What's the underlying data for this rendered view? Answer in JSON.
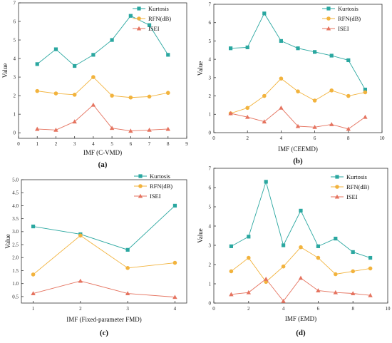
{
  "figure": {
    "colors": {
      "Kurtosis": "#2aa7a0",
      "RFN(dB)": "#f2b33d",
      "ISEI": "#e5735f"
    }
  },
  "chart_data": [
    {
      "type": "line",
      "panel_label": "(a)",
      "xlabel": "IMF (C-VMD)",
      "ylabel": "Value",
      "xlim": [
        0,
        9
      ],
      "ylim": [
        -0.3,
        7
      ],
      "xticks": [
        0,
        1,
        2,
        3,
        4,
        5,
        6,
        7,
        8,
        9
      ],
      "yticks": [
        0,
        1,
        2,
        3,
        4,
        5,
        6,
        7
      ],
      "ytick_labels": [
        "0",
        "1",
        "2",
        "3",
        "4",
        "5",
        "6",
        "7"
      ],
      "legend_position": "top-right",
      "x": [
        1,
        2,
        3,
        4,
        5,
        6,
        7,
        8
      ],
      "series": [
        {
          "name": "Kurtosis",
          "marker": "square",
          "values": [
            3.7,
            4.5,
            3.6,
            4.2,
            5.0,
            6.3,
            5.8,
            4.2
          ]
        },
        {
          "name": "RFN(dB)",
          "marker": "circle",
          "values": [
            2.25,
            2.12,
            2.05,
            3.0,
            2.0,
            1.9,
            1.95,
            2.15
          ]
        },
        {
          "name": "ISEI",
          "marker": "triangle",
          "values": [
            0.2,
            0.15,
            0.6,
            1.5,
            0.25,
            0.1,
            0.15,
            0.2
          ]
        }
      ]
    },
    {
      "type": "line",
      "panel_label": "(b)",
      "xlabel": "IMF (CEEMD)",
      "ylabel": "Value",
      "xlim": [
        0,
        10
      ],
      "ylim": [
        0,
        7
      ],
      "xticks": [
        0,
        2,
        4,
        6,
        8,
        10
      ],
      "yticks": [
        0,
        1,
        2,
        3,
        4,
        5,
        6,
        7
      ],
      "ytick_labels": [
        "0",
        "1",
        "2",
        "3",
        "4",
        "5",
        "6",
        "7"
      ],
      "legend_position": "top-right",
      "x": [
        1,
        2,
        3,
        4,
        5,
        6,
        7,
        8,
        9
      ],
      "series": [
        {
          "name": "Kurtosis",
          "marker": "square",
          "values": [
            4.6,
            4.65,
            6.5,
            5.0,
            4.6,
            4.4,
            4.2,
            3.95,
            2.35
          ]
        },
        {
          "name": "RFN(dB)",
          "marker": "circle",
          "values": [
            1.05,
            1.35,
            2.0,
            2.95,
            2.25,
            1.75,
            2.3,
            2.0,
            2.2
          ]
        },
        {
          "name": "ISEI",
          "marker": "triangle",
          "values": [
            1.05,
            0.85,
            0.6,
            1.35,
            0.35,
            0.3,
            0.45,
            0.2,
            0.85
          ]
        }
      ]
    },
    {
      "type": "line",
      "panel_label": "(c)",
      "xlabel": "IMF (Fixed-parameter FMD)",
      "ylabel": "Value",
      "xlim": [
        0.75,
        4.25
      ],
      "ylim": [
        0.25,
        5.0
      ],
      "xticks": [
        1,
        2,
        3,
        4
      ],
      "yticks": [
        0.5,
        1.0,
        1.5,
        2.0,
        2.5,
        3.0,
        3.5,
        4.0,
        4.5,
        5.0
      ],
      "ytick_labels": [
        "0.5",
        "1.0",
        "1.5",
        "2.0",
        "2.5",
        "3.0",
        "3.5",
        "4.0",
        "4.5",
        "5.0"
      ],
      "legend_position": "top-right",
      "x": [
        1,
        2,
        3,
        4
      ],
      "series": [
        {
          "name": "Kurtosis",
          "marker": "square",
          "values": [
            3.2,
            2.9,
            2.3,
            4.0
          ]
        },
        {
          "name": "RFN(dB)",
          "marker": "circle",
          "values": [
            1.35,
            2.85,
            1.6,
            1.8
          ]
        },
        {
          "name": "ISEI",
          "marker": "triangle",
          "values": [
            0.62,
            1.1,
            0.62,
            0.48
          ]
        }
      ]
    },
    {
      "type": "line",
      "panel_label": "(d)",
      "xlabel": "IMF (EMD)",
      "ylabel": "Value",
      "xlim": [
        0,
        10
      ],
      "ylim": [
        0,
        7
      ],
      "xticks": [
        0,
        2,
        4,
        6,
        8,
        10
      ],
      "yticks": [
        0,
        1,
        2,
        3,
        4,
        5,
        6,
        7
      ],
      "ytick_labels": [
        "0",
        "1",
        "2",
        "3",
        "4",
        "5",
        "6",
        "7"
      ],
      "legend_position": "top-right",
      "x": [
        1,
        2,
        3,
        4,
        5,
        6,
        7,
        8,
        9
      ],
      "series": [
        {
          "name": "Kurtosis",
          "marker": "square",
          "values": [
            2.95,
            3.45,
            6.3,
            3.0,
            4.8,
            2.95,
            3.35,
            2.65,
            2.35
          ]
        },
        {
          "name": "RFN(dB)",
          "marker": "circle",
          "values": [
            1.65,
            2.35,
            1.1,
            1.9,
            2.9,
            2.35,
            1.5,
            1.65,
            1.8
          ]
        },
        {
          "name": "ISEI",
          "marker": "triangle",
          "values": [
            0.45,
            0.55,
            1.25,
            0.1,
            1.3,
            0.65,
            0.55,
            0.5,
            0.4
          ]
        }
      ]
    }
  ]
}
